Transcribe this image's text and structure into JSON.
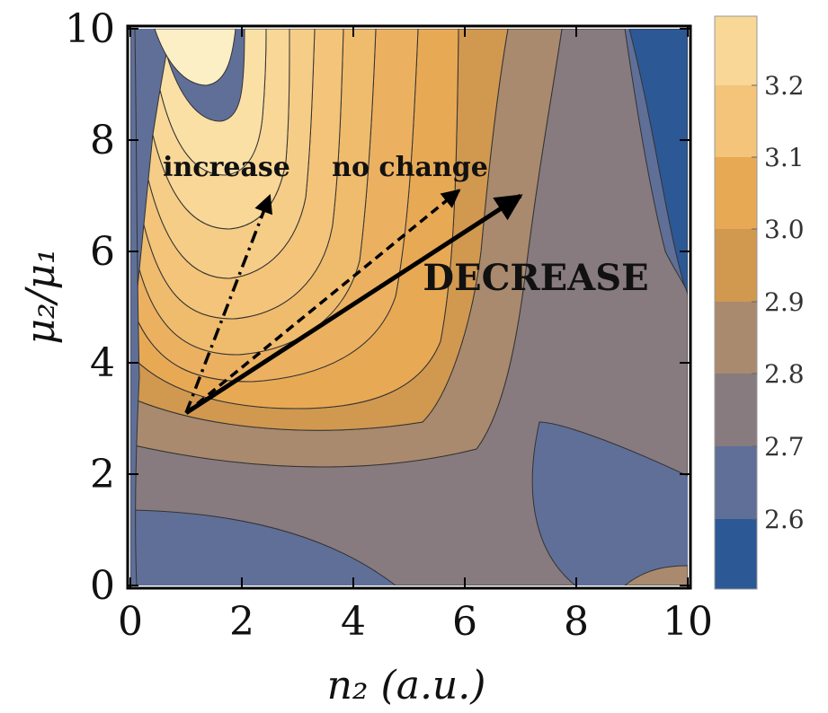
{
  "chart_data": {
    "type": "heatmap",
    "subtype": "filled-contour",
    "title": "",
    "xlabel": "n₂ (a.u.)",
    "ylabel": "μ₂/μ₁",
    "xlim": [
      0,
      10
    ],
    "ylim": [
      0,
      10
    ],
    "x_ticks": [
      "0",
      "2",
      "4",
      "6",
      "8",
      "10"
    ],
    "y_ticks": [
      "0",
      "2",
      "4",
      "6",
      "8",
      "10"
    ],
    "colorbar": {
      "levels": [
        2.6,
        2.7,
        2.8,
        2.9,
        3.0,
        3.1,
        3.2
      ],
      "tick_labels": [
        "2.6",
        "2.7",
        "2.8",
        "2.9",
        "3.0",
        "3.1",
        "3.2"
      ],
      "band_colors": [
        "#2c5896",
        "#5f6f98",
        "#877b7f",
        "#a98a6e",
        "#d19850",
        "#e8a955",
        "#f0bc6f",
        "#f6d08e",
        "#fbeab8"
      ]
    },
    "arrows": [
      {
        "label": "increase",
        "style": "dash-dot",
        "from": [
          1.0,
          3.1
        ],
        "to": [
          2.5,
          7.0
        ]
      },
      {
        "label": "no change",
        "style": "dashed",
        "from": [
          1.0,
          3.1
        ],
        "to": [
          5.9,
          7.1
        ]
      },
      {
        "label": "DECREASE",
        "style": "solid",
        "from": [
          1.0,
          3.1
        ],
        "to": [
          7.0,
          7.0
        ]
      }
    ],
    "annotations": [
      "increase",
      "no change",
      "DECREASE"
    ],
    "grid": false,
    "legend": "colorbar-right"
  }
}
